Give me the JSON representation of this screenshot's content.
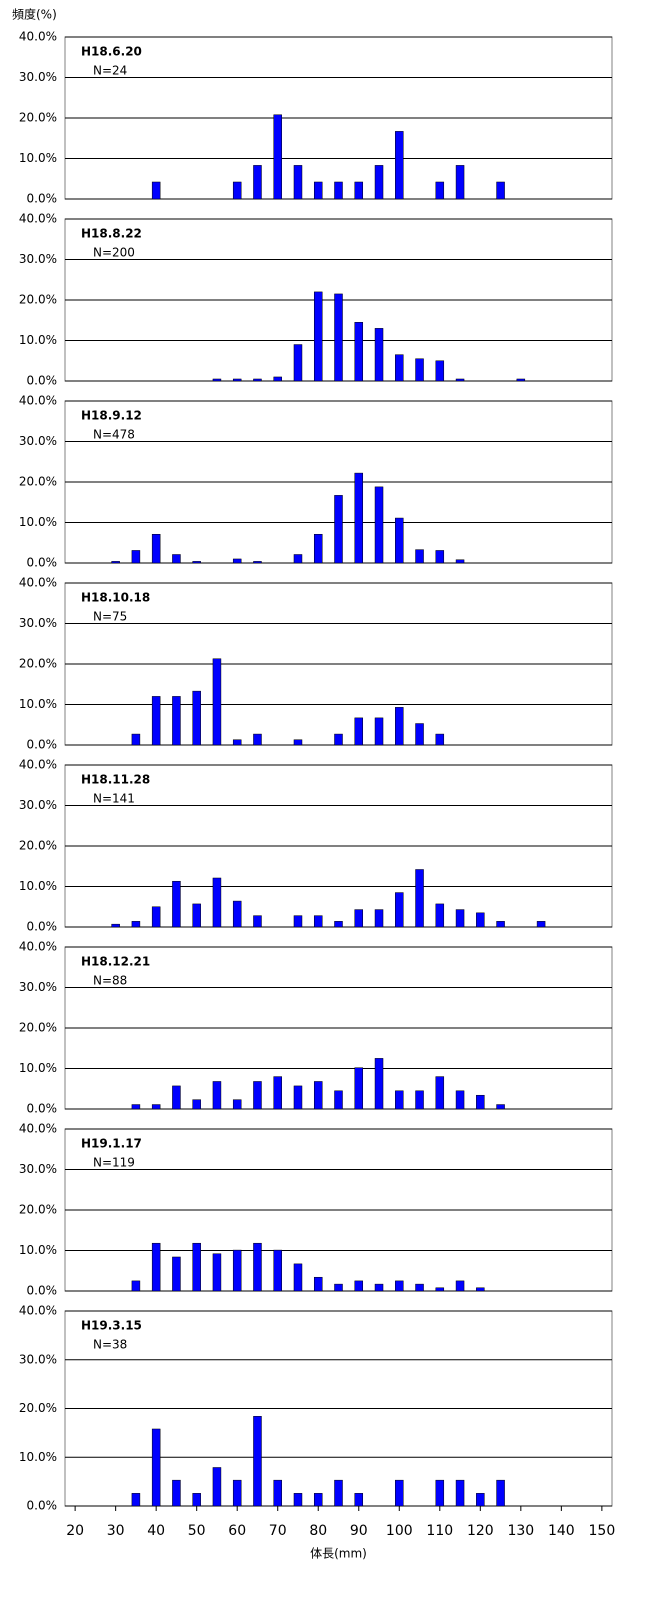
{
  "chart_data": [
    {
      "type": "bar",
      "title": "H18.6.20",
      "subtitle": "N=24",
      "ylabel": "頻度(%)",
      "color": "#0000ff",
      "grid": true,
      "x": [
        40,
        60,
        65,
        70,
        75,
        80,
        85,
        90,
        95,
        100,
        110,
        115,
        125
      ],
      "values": [
        4.2,
        4.2,
        8.3,
        20.8,
        8.3,
        4.2,
        4.2,
        4.2,
        8.3,
        16.7,
        4.2,
        8.3,
        4.2
      ],
      "xlim": [
        17.5,
        152.5
      ],
      "ylim": [
        0,
        40
      ],
      "yticks": [
        {
          "value": 0,
          "label": "0.0%"
        },
        {
          "value": 10,
          "label": "10.0%"
        },
        {
          "value": 20,
          "label": "20.0%"
        },
        {
          "value": 30,
          "label": "30.0%"
        },
        {
          "value": 40,
          "label": "40.0%"
        }
      ]
    },
    {
      "type": "bar",
      "title": "H18.8.22",
      "subtitle": "N=200",
      "color": "#0000ff",
      "grid": true,
      "x": [
        55,
        60,
        65,
        70,
        75,
        80,
        85,
        90,
        95,
        100,
        105,
        110,
        115,
        130
      ],
      "values": [
        0.5,
        0.5,
        0.5,
        1.0,
        9.0,
        22.0,
        21.5,
        14.5,
        13.0,
        6.5,
        5.5,
        5.0,
        0.5,
        0.5
      ],
      "xlim": [
        17.5,
        152.5
      ],
      "ylim": [
        0,
        40
      ],
      "yticks": [
        {
          "value": 0,
          "label": "0.0%"
        },
        {
          "value": 10,
          "label": "10.0%"
        },
        {
          "value": 20,
          "label": "20.0%"
        },
        {
          "value": 30,
          "label": "30.0%"
        },
        {
          "value": 40,
          "label": "40.0%"
        }
      ]
    },
    {
      "type": "bar",
      "title": "H18.9.12",
      "subtitle": "N=478",
      "color": "#0000ff",
      "grid": true,
      "x": [
        30,
        35,
        40,
        45,
        50,
        60,
        65,
        75,
        80,
        85,
        90,
        95,
        100,
        105,
        110,
        115
      ],
      "values": [
        0.4,
        3.1,
        7.1,
        2.1,
        0.4,
        1.0,
        0.4,
        2.1,
        7.1,
        16.7,
        22.2,
        18.8,
        11.1,
        3.3,
        3.1,
        0.8
      ],
      "xlim": [
        17.5,
        152.5
      ],
      "ylim": [
        0,
        40
      ],
      "yticks": [
        {
          "value": 0,
          "label": "0.0%"
        },
        {
          "value": 10,
          "label": "10.0%"
        },
        {
          "value": 20,
          "label": "20.0%"
        },
        {
          "value": 30,
          "label": "30.0%"
        },
        {
          "value": 40,
          "label": "40.0%"
        }
      ]
    },
    {
      "type": "bar",
      "title": "H18.10.18",
      "subtitle": "N=75",
      "color": "#0000ff",
      "grid": true,
      "x": [
        35,
        40,
        45,
        50,
        55,
        60,
        65,
        75,
        85,
        90,
        95,
        100,
        105,
        110
      ],
      "values": [
        2.7,
        12.0,
        12.0,
        13.3,
        21.3,
        1.3,
        2.7,
        1.3,
        2.7,
        6.7,
        6.7,
        9.3,
        5.3,
        2.7
      ],
      "xlim": [
        17.5,
        152.5
      ],
      "ylim": [
        0,
        40
      ],
      "yticks": [
        {
          "value": 0,
          "label": "0.0%"
        },
        {
          "value": 10,
          "label": "10.0%"
        },
        {
          "value": 20,
          "label": "20.0%"
        },
        {
          "value": 30,
          "label": "30.0%"
        },
        {
          "value": 40,
          "label": "40.0%"
        }
      ]
    },
    {
      "type": "bar",
      "title": "H18.11.28",
      "subtitle": "N=141",
      "color": "#0000ff",
      "grid": true,
      "x": [
        30,
        35,
        40,
        45,
        50,
        55,
        60,
        65,
        75,
        80,
        85,
        90,
        95,
        100,
        105,
        110,
        115,
        120,
        125,
        135
      ],
      "values": [
        0.7,
        1.4,
        5.0,
        11.3,
        5.7,
        12.1,
        6.4,
        2.8,
        2.8,
        2.8,
        1.4,
        4.3,
        4.3,
        8.5,
        14.2,
        5.7,
        4.3,
        3.5,
        1.4,
        1.4
      ],
      "xlim": [
        17.5,
        152.5
      ],
      "ylim": [
        0,
        40
      ],
      "yticks": [
        {
          "value": 0,
          "label": "0.0%"
        },
        {
          "value": 10,
          "label": "10.0%"
        },
        {
          "value": 20,
          "label": "20.0%"
        },
        {
          "value": 30,
          "label": "30.0%"
        },
        {
          "value": 40,
          "label": "40.0%"
        }
      ]
    },
    {
      "type": "bar",
      "title": "H18.12.21",
      "subtitle": "N=88",
      "color": "#0000ff",
      "grid": true,
      "x": [
        35,
        40,
        45,
        50,
        55,
        60,
        65,
        70,
        75,
        80,
        85,
        90,
        95,
        100,
        105,
        110,
        115,
        120,
        125
      ],
      "values": [
        1.1,
        1.1,
        5.7,
        2.3,
        6.8,
        2.3,
        6.8,
        8.0,
        5.7,
        6.8,
        4.5,
        10.2,
        12.5,
        4.5,
        4.5,
        8.0,
        4.5,
        3.4,
        1.1
      ],
      "xlim": [
        17.5,
        152.5
      ],
      "ylim": [
        0,
        40
      ],
      "yticks": [
        {
          "value": 0,
          "label": "0.0%"
        },
        {
          "value": 10,
          "label": "10.0%"
        },
        {
          "value": 20,
          "label": "20.0%"
        },
        {
          "value": 30,
          "label": "30.0%"
        },
        {
          "value": 40,
          "label": "40.0%"
        }
      ]
    },
    {
      "type": "bar",
      "title": "H19.1.17",
      "subtitle": "N=119",
      "color": "#0000ff",
      "grid": true,
      "x": [
        35,
        40,
        45,
        50,
        55,
        60,
        65,
        70,
        75,
        80,
        85,
        90,
        95,
        100,
        105,
        110,
        115,
        120
      ],
      "values": [
        2.5,
        11.8,
        8.4,
        11.8,
        9.2,
        10.1,
        11.8,
        10.1,
        6.7,
        3.4,
        1.7,
        2.5,
        1.7,
        2.5,
        1.7,
        0.8,
        2.5,
        0.8
      ],
      "xlim": [
        17.5,
        152.5
      ],
      "ylim": [
        0,
        40
      ],
      "yticks": [
        {
          "value": 0,
          "label": "0.0%"
        },
        {
          "value": 10,
          "label": "10.0%"
        },
        {
          "value": 20,
          "label": "20.0%"
        },
        {
          "value": 30,
          "label": "30.0%"
        },
        {
          "value": 40,
          "label": "40.0%"
        }
      ]
    },
    {
      "type": "bar",
      "title": "H19.3.15",
      "subtitle": "N=38",
      "xlabel": "体長(mm)",
      "color": "#0000ff",
      "grid": true,
      "x": [
        35,
        40,
        45,
        50,
        55,
        60,
        65,
        70,
        75,
        80,
        85,
        90,
        100,
        110,
        115,
        120,
        125
      ],
      "values": [
        2.6,
        15.8,
        5.3,
        2.6,
        7.9,
        5.3,
        18.4,
        5.3,
        2.6,
        2.6,
        5.3,
        2.6,
        5.3,
        5.3,
        5.3,
        2.6,
        5.3
      ],
      "xlim": [
        17.5,
        152.5
      ],
      "ylim": [
        0,
        40
      ],
      "xticks": [
        20,
        30,
        40,
        50,
        60,
        70,
        80,
        90,
        100,
        110,
        120,
        130,
        140,
        150
      ],
      "yticks": [
        {
          "value": 0,
          "label": "0.0%"
        },
        {
          "value": 10,
          "label": "10.0%"
        },
        {
          "value": 20,
          "label": "20.0%"
        },
        {
          "value": 30,
          "label": "30.0%"
        },
        {
          "value": 40,
          "label": "40.0%"
        }
      ]
    }
  ]
}
